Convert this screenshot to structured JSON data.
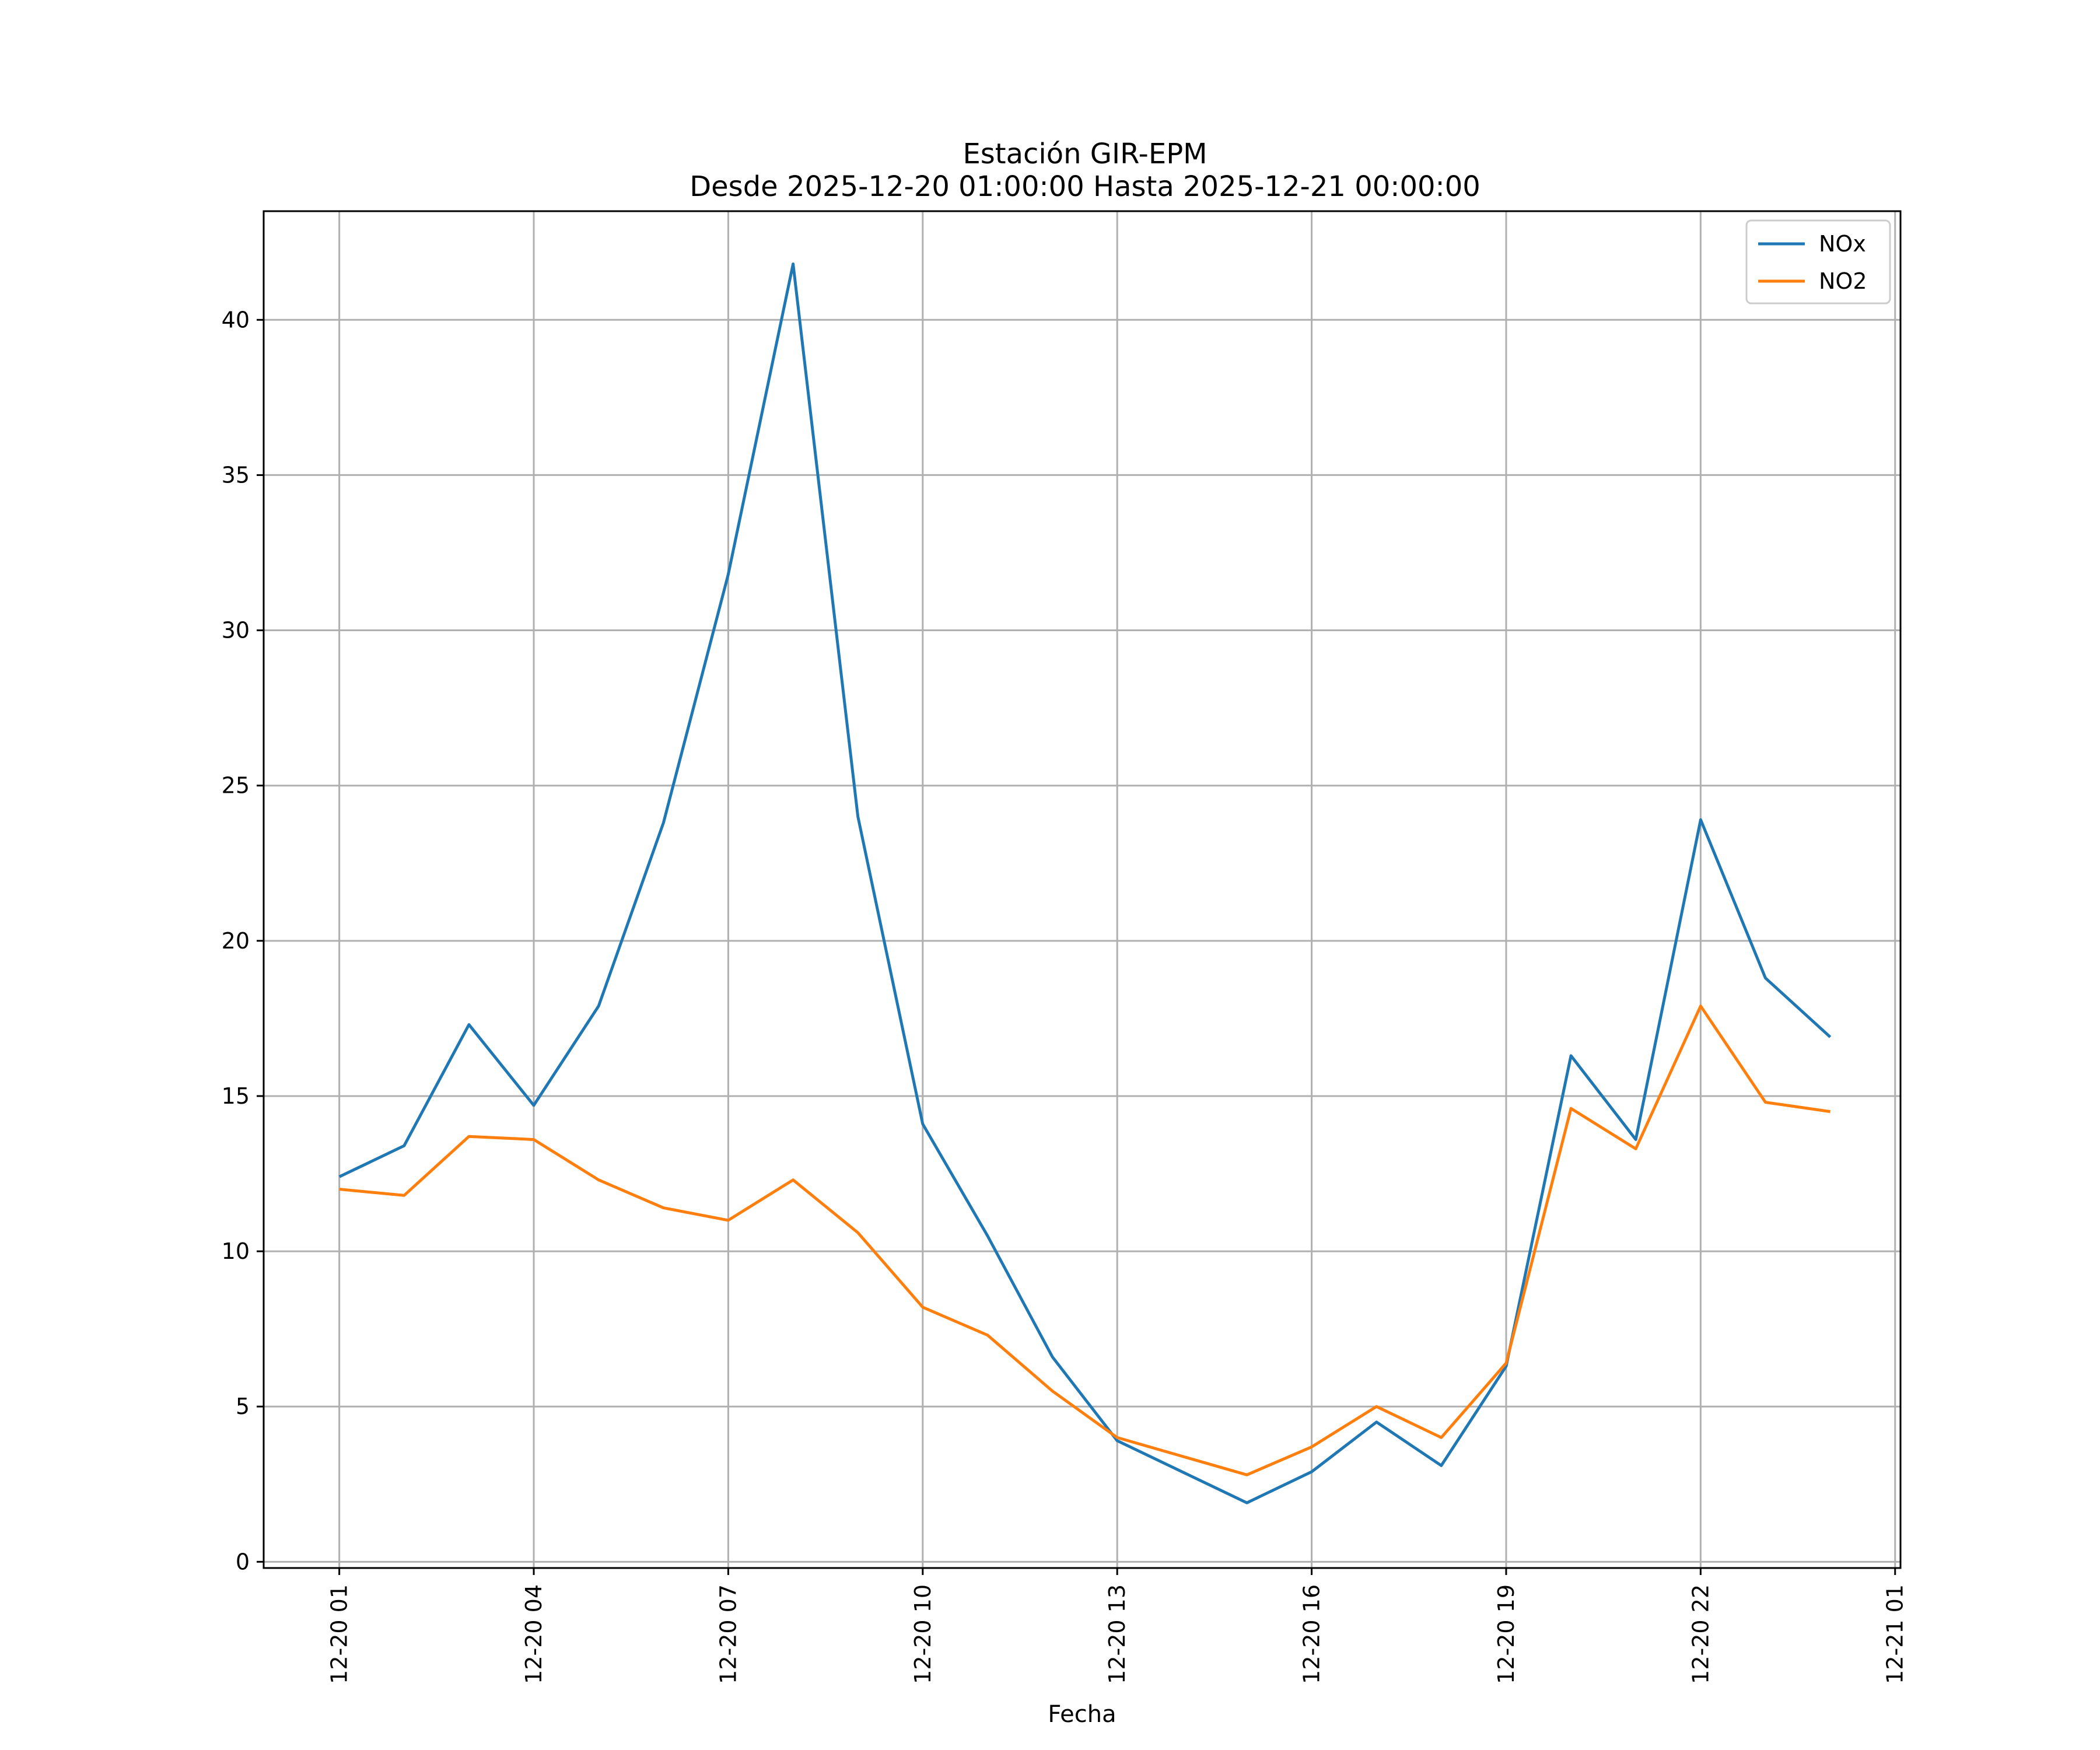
{
  "chart_data": {
    "type": "line",
    "title": [
      "Estación GIR-EPM",
      "Desde 2025-12-20 01:00:00 Hasta 2025-12-21 00:00:00"
    ],
    "xlabel": "Fecha",
    "ylabel": "",
    "x": [
      "2025-12-20 01:00",
      "2025-12-20 02:00",
      "2025-12-20 03:00",
      "2025-12-20 04:00",
      "2025-12-20 05:00",
      "2025-12-20 06:00",
      "2025-12-20 07:00",
      "2025-12-20 08:00",
      "2025-12-20 09:00",
      "2025-12-20 10:00",
      "2025-12-20 11:00",
      "2025-12-20 12:00",
      "2025-12-20 13:00",
      "2025-12-20 14:00",
      "2025-12-20 15:00",
      "2025-12-20 16:00",
      "2025-12-20 17:00",
      "2025-12-20 18:00",
      "2025-12-20 19:00",
      "2025-12-20 20:00",
      "2025-12-20 21:00",
      "2025-12-20 22:00",
      "2025-12-20 23:00",
      "2025-12-21 00:00"
    ],
    "xticks": [
      "12-20 01",
      "12-20 04",
      "12-20 07",
      "12-20 10",
      "12-20 13",
      "12-20 16",
      "12-20 19",
      "12-20 22",
      "12-21 01"
    ],
    "xtick_values": [
      "2025-12-20 01:00",
      "2025-12-20 04:00",
      "2025-12-20 07:00",
      "2025-12-20 10:00",
      "2025-12-20 13:00",
      "2025-12-20 16:00",
      "2025-12-20 19:00",
      "2025-12-20 22:00",
      "2025-12-21 01:00"
    ],
    "xlim": [
      "2025-12-19 23:50",
      "2025-12-21 01:05"
    ],
    "ylim": [
      -0.2,
      43.5
    ],
    "yticks": [
      0,
      5,
      10,
      15,
      20,
      25,
      30,
      35,
      40
    ],
    "grid": true,
    "legend_position": "top-right",
    "series": [
      {
        "name": "NOx",
        "color": "#1f77b4",
        "values": [
          12.4,
          13.4,
          17.3,
          14.7,
          17.9,
          23.8,
          31.8,
          41.8,
          24.0,
          14.1,
          10.5,
          6.6,
          3.9,
          2.9,
          1.9,
          2.9,
          4.5,
          3.1,
          6.3,
          16.3,
          13.6,
          23.9,
          18.8,
          16.9
        ]
      },
      {
        "name": "NO2",
        "color": "#ff7f0e",
        "values": [
          12.0,
          11.8,
          13.7,
          13.6,
          12.3,
          11.4,
          11.0,
          12.3,
          10.6,
          8.2,
          7.3,
          5.5,
          4.0,
          3.4,
          2.8,
          3.7,
          5.0,
          4.0,
          6.4,
          14.6,
          13.3,
          17.9,
          14.8,
          14.5
        ]
      }
    ]
  }
}
